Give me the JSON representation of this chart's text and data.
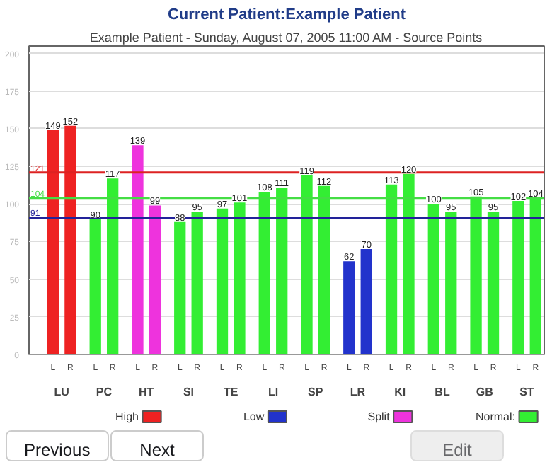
{
  "chart_data": {
    "type": "bar",
    "title": "Current Patient:Example Patient",
    "subtitle": "Example Patient - Sunday, August 07, 2005 11:00 AM - Source Points",
    "categories": [
      "L",
      "R",
      "L",
      "R",
      "L",
      "R",
      "L",
      "R",
      "L",
      "R",
      "L",
      "R",
      "L",
      "R",
      "L",
      "R",
      "L",
      "R",
      "L",
      "R",
      "L",
      "R",
      "L",
      "R"
    ],
    "series": [
      {
        "name": "High",
        "color": "#ee2222",
        "values": [
          149,
          152,
          null,
          null,
          null,
          null,
          null,
          null,
          null,
          null,
          null,
          null,
          null,
          null,
          null,
          null,
          null,
          null,
          null,
          null,
          null,
          null,
          null,
          null
        ]
      },
      {
        "name": "Low",
        "color": "#2233cc",
        "values": [
          null,
          null,
          null,
          null,
          null,
          null,
          null,
          null,
          null,
          null,
          null,
          null,
          null,
          null,
          62,
          70,
          null,
          null,
          null,
          null,
          null,
          null,
          null,
          null
        ]
      },
      {
        "name": "Split",
        "color": "#ee33dd",
        "values": [
          null,
          null,
          null,
          null,
          139,
          99,
          null,
          null,
          null,
          null,
          null,
          null,
          null,
          null,
          null,
          null,
          null,
          null,
          null,
          null,
          null,
          null,
          null,
          null
        ]
      },
      {
        "name": "Normal:",
        "color": "#33ee33",
        "values": [
          null,
          null,
          90,
          117,
          null,
          null,
          88,
          95,
          97,
          101,
          108,
          111,
          119,
          112,
          null,
          null,
          113,
          120,
          100,
          95,
          105,
          95,
          102,
          104
        ]
      }
    ],
    "ylim": [
      0,
      205
    ],
    "yticks": [
      0,
      25,
      50,
      75,
      100,
      125,
      150,
      175,
      200
    ],
    "grid": "y",
    "data_labels": true,
    "legend": "bottom",
    "ref_lines": [
      {
        "axis": "y",
        "value": 121,
        "label": "121",
        "color": "#dd2222"
      },
      {
        "axis": "y",
        "value": 104,
        "label": "104",
        "color": "#44dd44"
      },
      {
        "axis": "y",
        "value": 91,
        "label": "91",
        "color": "#222299"
      }
    ],
    "annotations": [
      "LU",
      "PC",
      "HT",
      "SI",
      "TE",
      "LI",
      "SP",
      "LR",
      "KI",
      "BL",
      "GB",
      "ST",
      "Previous",
      "Next",
      "Edit"
    ]
  }
}
